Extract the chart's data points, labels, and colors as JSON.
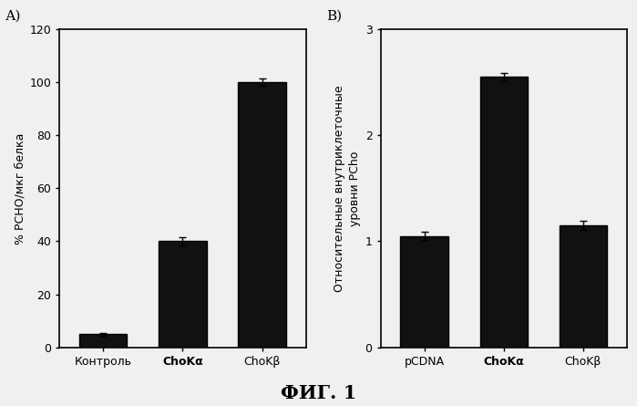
{
  "panel_A": {
    "label": "А)",
    "categories": [
      "Контроль",
      "ChoKα",
      "ChoKβ"
    ],
    "values": [
      5,
      40,
      100
    ],
    "errors": [
      0.5,
      1.5,
      1.5
    ],
    "ylabel": "% РСНО/мкг белка",
    "ylim": [
      0,
      120
    ],
    "yticks": [
      0,
      20,
      40,
      60,
      80,
      100,
      120
    ],
    "bar_width": 0.6,
    "bold_labels": [
      false,
      true,
      false
    ]
  },
  "panel_B": {
    "label": "В)",
    "categories": [
      "pCDNA",
      "ChoKα",
      "ChoKβ"
    ],
    "values": [
      1.05,
      2.55,
      1.15
    ],
    "errors": [
      0.04,
      0.04,
      0.04
    ],
    "ylabel": "Относительные внутриклеточные\nуровни PCho",
    "ylim": [
      0,
      3
    ],
    "yticks": [
      0,
      1,
      2,
      3
    ],
    "bar_width": 0.6,
    "bold_labels": [
      false,
      true,
      false
    ]
  },
  "figure_title": "ФИГ. 1",
  "bg_color": "#f0f0f0",
  "bar_color": "#111111",
  "font_size": 9,
  "title_font_size": 15
}
